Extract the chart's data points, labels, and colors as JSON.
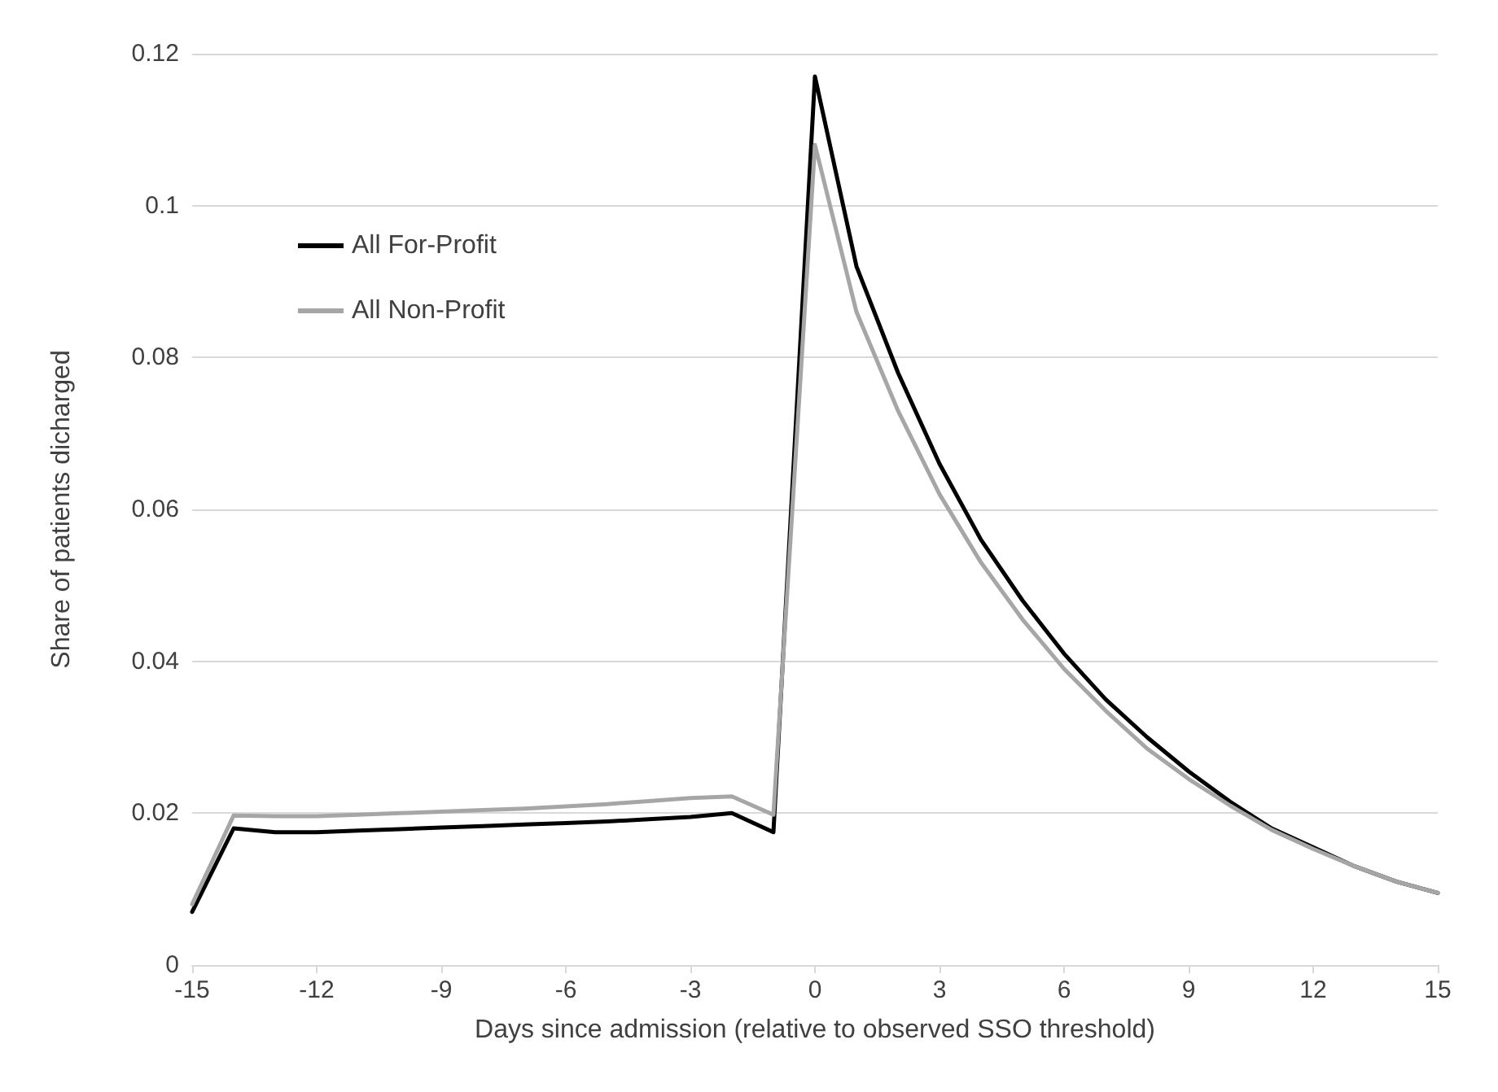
{
  "chart_data": {
    "type": "line",
    "xlabel": "Days since admission (relative to observed SSO threshold)",
    "ylabel": "Share of patients dicharged",
    "x": [
      -15,
      -14,
      -13,
      -12,
      -11,
      -10,
      -9,
      -8,
      -7,
      -6,
      -5,
      -4,
      -3,
      -2,
      -1,
      0,
      1,
      2,
      3,
      4,
      5,
      6,
      7,
      8,
      9,
      10,
      11,
      12,
      13,
      14,
      15
    ],
    "series": [
      {
        "name": "All For-Profit",
        "color": "#000000",
        "values": [
          0.007,
          0.018,
          0.0175,
          0.0175,
          0.0177,
          0.0179,
          0.0181,
          0.0183,
          0.0185,
          0.0187,
          0.0189,
          0.0192,
          0.0195,
          0.02,
          0.0175,
          0.117,
          0.092,
          0.078,
          0.066,
          0.056,
          0.048,
          0.041,
          0.035,
          0.03,
          0.0255,
          0.0215,
          0.018,
          0.0155,
          0.013,
          0.011,
          0.0095
        ]
      },
      {
        "name": "All Non-Profit",
        "color": "#a6a6a6",
        "values": [
          0.008,
          0.0197,
          0.0196,
          0.0196,
          0.0198,
          0.02,
          0.0202,
          0.0204,
          0.0206,
          0.0209,
          0.0212,
          0.0216,
          0.022,
          0.0222,
          0.0198,
          0.108,
          0.086,
          0.073,
          0.062,
          0.053,
          0.0455,
          0.039,
          0.0335,
          0.0285,
          0.0245,
          0.021,
          0.0178,
          0.0153,
          0.013,
          0.011,
          0.0095
        ]
      }
    ],
    "xlim": [
      -15,
      15
    ],
    "xticks": [
      -15,
      -12,
      -9,
      -6,
      -3,
      0,
      3,
      6,
      9,
      12,
      15
    ],
    "ylim": [
      0,
      0.12
    ],
    "yticks": [
      0,
      0.02,
      0.04,
      0.06,
      0.08,
      0.1,
      0.12
    ],
    "grid": "y",
    "legend": "top left",
    "marker": "none",
    "line_style": "solid"
  }
}
